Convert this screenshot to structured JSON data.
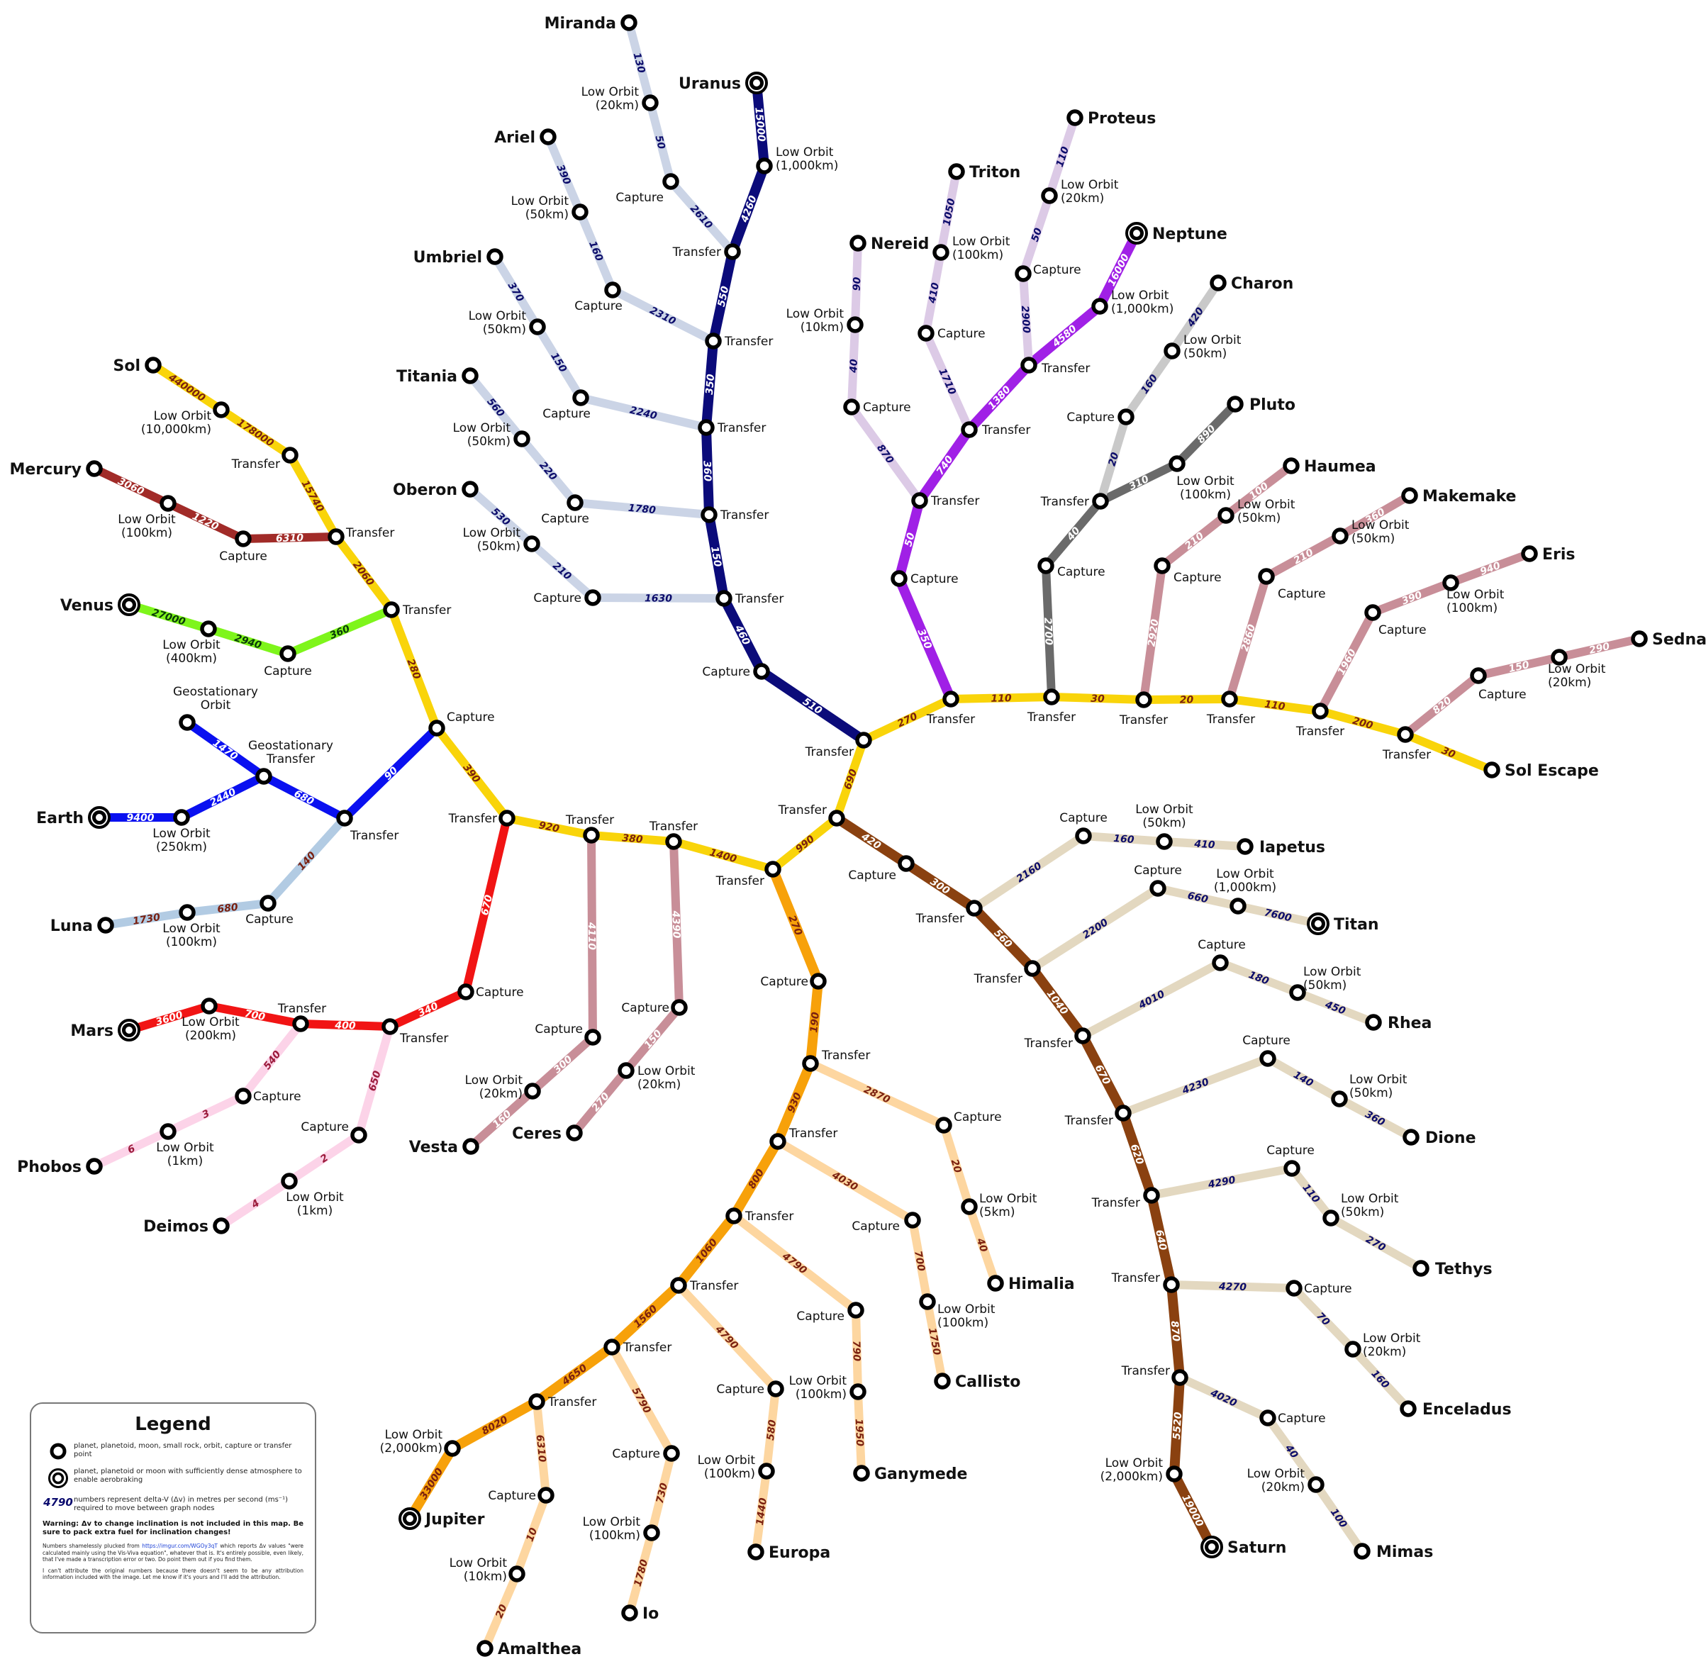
{
  "colors": {
    "sol_trunk": "#f9d40a",
    "sol_dv_text": "#7a1a10",
    "mercury": "#a12b28",
    "venus": "#7ef51b",
    "earth": "#0a10f0",
    "luna": "#b2cbe3",
    "mars": "#f11414",
    "mars_moons": "#fcd3e8",
    "asteroid": "#c88e98",
    "jupiter_trunk": "#f7a10a",
    "jupiter_moons": "#fdd6a0",
    "saturn_trunk": "#8a4110",
    "saturn_moons": "#e3d8c0",
    "uranus_trunk": "#0b0b7a",
    "uranus_moons": "#cbd4e6",
    "neptune_trunk": "#a020e6",
    "neptune_moons": "#dccae6",
    "pluto": "#6a6a6a",
    "charon": "#c9c9c9",
    "dwarf_planets": "#c88e98"
  },
  "bodies": {
    "sol": "Sol",
    "mercury": "Mercury",
    "venus": "Venus",
    "earth": "Earth",
    "luna": "Luna",
    "mars": "Mars",
    "phobos": "Phobos",
    "deimos": "Deimos",
    "vesta": "Vesta",
    "ceres": "Ceres",
    "jupiter": "Jupiter",
    "amalthea": "Amalthea",
    "io": "Io",
    "europa": "Europa",
    "ganymede": "Ganymede",
    "callisto": "Callisto",
    "himalia": "Himalia",
    "saturn": "Saturn",
    "mimas": "Mimas",
    "enceladus": "Enceladus",
    "tethys": "Tethys",
    "dione": "Dione",
    "rhea": "Rhea",
    "titan": "Titan",
    "iapetus": "Iapetus",
    "uranus": "Uranus",
    "miranda": "Miranda",
    "ariel": "Ariel",
    "umbriel": "Umbriel",
    "titania": "Titania",
    "oberon": "Oberon",
    "neptune": "Neptune",
    "triton": "Triton",
    "nereid": "Nereid",
    "proteus": "Proteus",
    "pluto": "Pluto",
    "charon": "Charon",
    "haumea": "Haumea",
    "makemake": "Makemake",
    "eris": "Eris",
    "sedna": "Sedna",
    "sol_escape": "Sol Escape"
  },
  "node_labels": {
    "transfer": "Transfer",
    "capture": "Capture",
    "geo_orbit": "Geostationary Orbit",
    "geo_transfer": "Geostationary Transfer",
    "lo_sol": "Low Orbit (10,000km)",
    "lo_mercury": "Low Orbit (100km)",
    "lo_venus": "Low Orbit (400km)",
    "lo_earth": "Low Orbit (250km)",
    "lo_luna": "Low Orbit (100km)",
    "lo_mars": "Low Orbit (200km)",
    "lo_phobos": "Low Orbit (1km)",
    "lo_deimos": "Low Orbit (1km)",
    "lo_vesta": "Low Orbit (20km)",
    "lo_ceres": "Low Orbit (20km)",
    "lo_jupiter": "Low Orbit (2,000km)",
    "lo_amalthea": "Low Orbit (10km)",
    "lo_io": "Low Orbit (100km)",
    "lo_europa": "Low Orbit (100km)",
    "lo_ganymede": "Low Orbit (100km)",
    "lo_callisto": "Low Orbit (100km)",
    "lo_himalia": "Low Orbit (5km)",
    "lo_saturn": "Low Orbit (2,000km)",
    "lo_mimas": "Low Orbit (20km)",
    "lo_enceladus": "Low Orbit (20km)",
    "lo_tethys": "Low Orbit (50km)",
    "lo_dione": "Low Orbit (50km)",
    "lo_rhea": "Low Orbit (50km)",
    "lo_titan": "Low Orbit (1,000km)",
    "lo_iapetus": "Low Orbit (50km)",
    "lo_uranus": "Low Orbit (1,000km)",
    "lo_miranda": "Low Orbit (20km)",
    "lo_ariel": "Low Orbit (50km)",
    "lo_umbriel": "Low Orbit (50km)",
    "lo_titania": "Low Orbit (50km)",
    "lo_oberon": "Low Orbit (50km)",
    "lo_neptune": "Low Orbit (1,000km)",
    "lo_triton": "Low Orbit (100km)",
    "lo_nereid": "Low Orbit (10km)",
    "lo_proteus": "Low Orbit (20km)",
    "lo_pluto": "Low Orbit (100km)",
    "lo_charon": "Low Orbit (50km)",
    "lo_haumea": "Low Orbit (50km)",
    "lo_makemake": "Low Orbit (50km)",
    "lo_eris": "Low Orbit (100km)",
    "lo_sedna": "Low Orbit (20km)"
  },
  "delta_v": {
    "sol": [
      "440000",
      "178000",
      "15740"
    ],
    "mercury": [
      "3060",
      "1220",
      "6310",
      "2060"
    ],
    "venus": [
      "27000",
      "2940",
      "360",
      "280"
    ],
    "earth": [
      "9400",
      "2440",
      "680",
      "1470",
      "90",
      "390"
    ],
    "luna": [
      "1730",
      "680",
      "140"
    ],
    "mars": [
      "3600",
      "700",
      "400",
      "340",
      "670"
    ],
    "phobos": [
      "6",
      "3",
      "540"
    ],
    "deimos": [
      "4",
      "2",
      "650"
    ],
    "vesta": [
      "160",
      "300",
      "4110",
      "920"
    ],
    "ceres": [
      "270",
      "150",
      "4390",
      "380"
    ],
    "jupiter": [
      "33000",
      "8020",
      "4650",
      "1560",
      "1060",
      "800",
      "930",
      "190",
      "270",
      "1400",
      "990"
    ],
    "amalthea": [
      "20",
      "10",
      "6310"
    ],
    "io": [
      "1780",
      "730",
      "5790"
    ],
    "europa": [
      "1440",
      "580",
      "4790"
    ],
    "ganymede": [
      "1950",
      "790",
      "4790"
    ],
    "callisto": [
      "1750",
      "700",
      "4030"
    ],
    "himalia": [
      "40",
      "20",
      "2870"
    ],
    "saturn": [
      "19000",
      "5520",
      "870",
      "640",
      "620",
      "670",
      "1040",
      "560",
      "300",
      "420",
      "690"
    ],
    "mimas": [
      "100",
      "40",
      "4020"
    ],
    "enceladus": [
      "160",
      "70",
      "4270"
    ],
    "tethys": [
      "270",
      "110",
      "4290"
    ],
    "dione": [
      "360",
      "140",
      "4230"
    ],
    "rhea": [
      "450",
      "180",
      "4010"
    ],
    "titan": [
      "7600",
      "660",
      "2200"
    ],
    "iapetus": [
      "410",
      "160",
      "2160"
    ],
    "uranus": [
      "15000",
      "4260",
      "550",
      "350",
      "360",
      "150",
      "460",
      "510",
      "270"
    ],
    "miranda": [
      "130",
      "50",
      "2610"
    ],
    "ariel": [
      "390",
      "160",
      "2310"
    ],
    "umbriel": [
      "370",
      "150",
      "2240"
    ],
    "titania": [
      "560",
      "220",
      "1780"
    ],
    "oberon": [
      "530",
      "210",
      "1630"
    ],
    "neptune": [
      "16000",
      "4580",
      "1380",
      "740",
      "50",
      "350",
      "110"
    ],
    "triton": [
      "1050",
      "410",
      "1710"
    ],
    "nereid": [
      "90",
      "40",
      "870"
    ],
    "proteus": [
      "110",
      "50",
      "2900"
    ],
    "pluto": [
      "890",
      "310",
      "40",
      "2700",
      "30"
    ],
    "charon": [
      "420",
      "160",
      "20"
    ],
    "haumea": [
      "100",
      "210",
      "2920",
      "20"
    ],
    "makemake": [
      "360",
      "210",
      "2860",
      "110"
    ],
    "eris": [
      "940",
      "390",
      "1960",
      "200"
    ],
    "sedna": [
      "290",
      "150",
      "820"
    ],
    "sol_escape": [
      "30"
    ]
  },
  "legend": {
    "title": "Legend",
    "item_node": "planet, planetoid, moon, small rock, orbit, capture or transfer point",
    "item_atmo": "planet, planetoid or moon with sufficiently dense atmosphere to enable aerobraking",
    "sample_number": "4790",
    "item_number": "numbers represent delta-V (Δv) in metres per second (ms⁻¹) required to move between graph nodes",
    "warning": "Warning: Δv to change inclination is not included in this map. Be sure to pack extra fuel for inclination changes!",
    "credit_pre": "Numbers shamelessly plucked from",
    "credit_link": "https://imgur.com/WGOy3qT",
    "credit_post": "which reports Δv values \"were calculated mainly using the Vis-Viva equation\", whatever that is. It's entirely possible, even likely, that I've made a transcription error or two. Do point them out if you find them.",
    "attribution": "I can't attribute the original numbers because there doesn't seem to be any attribution information included with the image. Let me know if it's yours and I'll add the attribution."
  }
}
